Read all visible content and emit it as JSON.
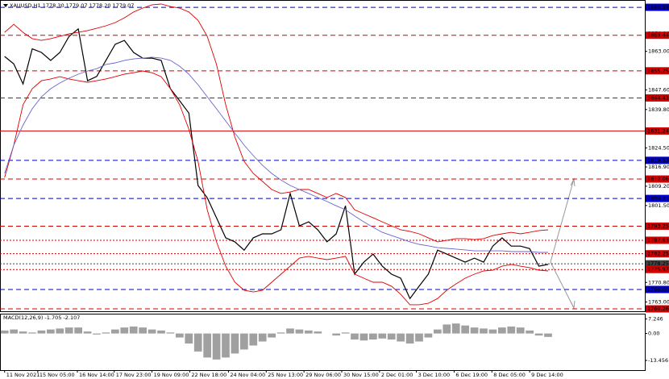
{
  "chart_data": [
    {
      "type": "line",
      "title": "XAUUSD,H1  1778.30 1779.07 1778.20 1779.07",
      "ylim": [
        1759.3,
        1881.9
      ],
      "xlim": [
        -0.5,
        69.5
      ],
      "xticks": [
        {
          "value": 0,
          "label": "11 Nov 2021"
        },
        {
          "value": 3.6,
          "label": "15 Nov 05:00"
        },
        {
          "value": 7.9,
          "label": "16 Nov 14:00"
        },
        {
          "value": 11.9,
          "label": "17 Nov 23:00"
        },
        {
          "value": 16,
          "label": "19 Nov 09:00"
        },
        {
          "value": 20.1,
          "label": "22 Nov 18:00"
        },
        {
          "value": 24.3,
          "label": "24 Nov 04:00"
        },
        {
          "value": 28.4,
          "label": "25 Nov 13:00"
        },
        {
          "value": 32.5,
          "label": "29 Nov 06:00"
        },
        {
          "value": 36.6,
          "label": "30 Nov 15:00"
        },
        {
          "value": 40.7,
          "label": "2 Dec 01:00"
        },
        {
          "value": 44.7,
          "label": "3 Dec 10:00"
        },
        {
          "value": 48.8,
          "label": "6 Dec 19:00"
        },
        {
          "value": 52.9,
          "label": "8 Dec 05:00"
        },
        {
          "value": 57,
          "label": "9 Dec 14:00"
        }
      ],
      "yticks": [
        {
          "value": 1870.2,
          "label": "1870.20"
        },
        {
          "value": 1863,
          "label": "1863.00"
        },
        {
          "value": 1847.6,
          "label": "1847.60"
        },
        {
          "value": 1839.8,
          "label": "1839.80"
        },
        {
          "value": 1824.5,
          "label": "1824.50"
        },
        {
          "value": 1816.9,
          "label": "1816.90"
        },
        {
          "value": 1809.2,
          "label": "1809.20"
        },
        {
          "value": 1801.5,
          "label": "1801.50"
        },
        {
          "value": 1770.8,
          "label": "1770.80"
        },
        {
          "value": 1763,
          "label": "1763.00"
        }
      ],
      "levels": [
        {
          "value": 1880.59,
          "label": "1880.59",
          "color": "#0000cc",
          "style": "dashed"
        },
        {
          "value": 1869.44,
          "label": "1869.44",
          "color": "#d40000",
          "style": "dashed"
        },
        {
          "value": 1855.25,
          "label": "1855.25",
          "color": "#d40000",
          "style": "dashed"
        },
        {
          "value": 1844.43,
          "label": "1844.43",
          "color": "#d40000",
          "style": "dashed"
        },
        {
          "value": 1831.24,
          "label": "1831.24",
          "color": "#d40000",
          "style": "solid"
        },
        {
          "value": 1819.53,
          "label": "1819.53",
          "color": "#0000cc",
          "style": "dashed"
        },
        {
          "value": 1812.06,
          "label": "1812.06",
          "color": "#d40000",
          "style": "dashed"
        },
        {
          "value": 1804.31,
          "label": "1804.31",
          "color": "#0000cc",
          "style": "dashed"
        },
        {
          "value": 1793.25,
          "label": "1793.25",
          "color": "#d40000",
          "style": "dashed"
        },
        {
          "value": 1787.63,
          "label": "1787.63",
          "color": "#d40000",
          "style": "dotted"
        },
        {
          "value": 1782.25,
          "label": "1782.25",
          "color": "#d40000",
          "style": "dotted"
        },
        {
          "value": 1778.25,
          "label": "1778.25",
          "color": "#404040",
          "style": "dotted"
        },
        {
          "value": 1775.97,
          "label": "1775.97",
          "color": "#d40000",
          "style": "dotted"
        },
        {
          "value": 1768,
          "label": "1768.00",
          "color": "#0000cc",
          "style": "dashed"
        },
        {
          "value": 1760.26,
          "label": "1760.26",
          "color": "#d40000",
          "style": "dashed"
        }
      ],
      "series": [
        {
          "color": "#000000",
          "values": [
            1861,
            1858,
            1850,
            1864,
            1862.6,
            1859.4,
            1862.6,
            1869,
            1872,
            1851.3,
            1853,
            1859.4,
            1865.8,
            1867.4,
            1862.6,
            1860.3,
            1860.3,
            1859.4,
            1848.1,
            1843.3,
            1838.4,
            1809.5,
            1804.6,
            1796.6,
            1788.6,
            1787,
            1783.7,
            1788.6,
            1790.2,
            1790.2,
            1791.8,
            1806.3,
            1793.4,
            1795,
            1791.8,
            1787,
            1790.2,
            1801.4,
            1774.1,
            1778.9,
            1782.1,
            1777.3,
            1774.1,
            1772.5,
            1764.4,
            1769.3,
            1774.1,
            1783.7,
            1782.1,
            1780.5,
            1778.9,
            1780.5,
            1778.9,
            1785.3,
            1788.6,
            1785.3,
            1785.3,
            1784.3,
            1777.3,
            1778
          ]
        },
        {
          "color": "#e00000",
          "values": [
            1870.6,
            1873.8,
            1870.6,
            1868.1,
            1867.4,
            1868.1,
            1869,
            1870,
            1870.6,
            1871.3,
            1872.2,
            1873.2,
            1874.5,
            1876.4,
            1878.7,
            1880.3,
            1881.6,
            1881.9,
            1880.9,
            1880.3,
            1878.7,
            1875.4,
            1869,
            1857.8,
            1841.7,
            1828.8,
            1819.1,
            1814.3,
            1811.1,
            1807.9,
            1806.3,
            1806.9,
            1807.9,
            1807.9,
            1806.3,
            1804.7,
            1806.3,
            1804.7,
            1799.8,
            1798.2,
            1796.6,
            1795,
            1793.4,
            1791.8,
            1791.2,
            1790.2,
            1788.6,
            1787,
            1787.6,
            1788.3,
            1788.3,
            1787.9,
            1788.3,
            1789.5,
            1790.2,
            1790.8,
            1790.2,
            1790.8,
            1791.5,
            1791.8
          ]
        },
        {
          "color": "#e00000",
          "values": [
            1812.7,
            1825.6,
            1841.7,
            1848.1,
            1851.3,
            1852,
            1852.9,
            1852,
            1851.3,
            1850.7,
            1851.3,
            1852,
            1852.9,
            1853.9,
            1854.5,
            1855.2,
            1854.5,
            1852.9,
            1848.1,
            1841.7,
            1832,
            1819.1,
            1799.8,
            1787,
            1777.3,
            1770.9,
            1767.7,
            1767,
            1767.7,
            1770.9,
            1774.1,
            1777.3,
            1780.5,
            1781.2,
            1780.5,
            1779.9,
            1780.5,
            1781.2,
            1774.1,
            1772.5,
            1770.9,
            1770.9,
            1769.3,
            1766.1,
            1761.9,
            1761.9,
            1762.5,
            1764.4,
            1767.7,
            1770.2,
            1772.5,
            1774.1,
            1775.4,
            1775.7,
            1777.3,
            1778,
            1777.3,
            1776.7,
            1775.7,
            1775.4
          ]
        },
        {
          "color": "#6666cc",
          "values": [
            1814.3,
            1825.6,
            1833.6,
            1840.1,
            1844.9,
            1848.1,
            1850.4,
            1852.3,
            1853.9,
            1855.2,
            1856.1,
            1857.8,
            1858.4,
            1859.4,
            1860,
            1860.3,
            1860.7,
            1860.3,
            1859.4,
            1857.1,
            1853.9,
            1849.7,
            1844.9,
            1840.1,
            1835.2,
            1830.4,
            1825.6,
            1821.4,
            1817.5,
            1814.3,
            1811.7,
            1809.5,
            1807.9,
            1806.3,
            1804.7,
            1803.1,
            1801.4,
            1799.8,
            1797.3,
            1795,
            1792.8,
            1790.8,
            1789.5,
            1788.3,
            1787,
            1786,
            1785.4,
            1784.7,
            1784.4,
            1784.1,
            1783.8,
            1783.4,
            1783.4,
            1783.4,
            1783.4,
            1783.1,
            1783.1,
            1783.1,
            1782.8,
            1782.8
          ]
        }
      ]
    },
    {
      "type": "bar",
      "title": "MACD(12,26,9) -1.705 -2.107",
      "ylim": [
        -18.3,
        9.5
      ],
      "yticks": [
        7.246,
        {
          "value": 0,
          "label": "0.00"
        },
        -13.456
      ],
      "color": "#a0a0a0",
      "values": [
        1.5,
        2,
        1,
        0.5,
        1.5,
        2,
        2.5,
        3,
        3,
        1,
        -0.5,
        0.5,
        2,
        3,
        3.5,
        3,
        2,
        1.5,
        0.5,
        -2,
        -5,
        -9,
        -12,
        -13,
        -12,
        -10,
        -8,
        -6,
        -4,
        -2,
        0.5,
        2.5,
        2,
        1.5,
        1,
        0,
        -1,
        0.5,
        -3,
        -3.5,
        -3,
        -2.5,
        -3,
        -4,
        -5,
        -4,
        -2,
        2,
        4.5,
        5,
        4,
        3,
        2.5,
        2,
        3,
        3.5,
        3,
        1.5,
        -1,
        -1.7
      ]
    }
  ]
}
